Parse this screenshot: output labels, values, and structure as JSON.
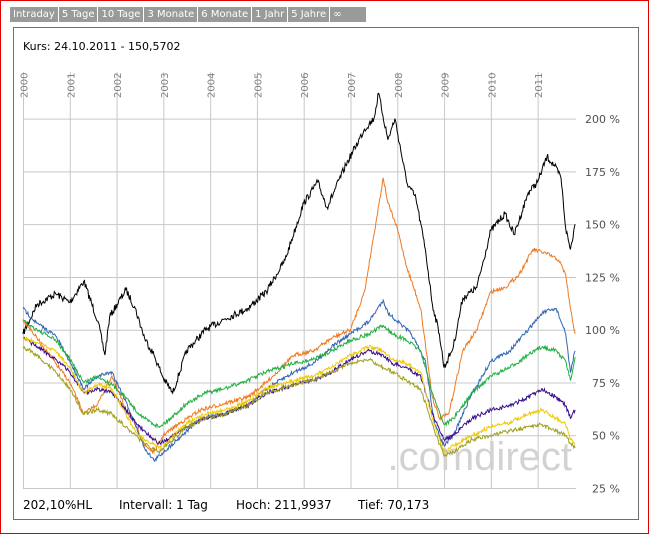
{
  "tabs": [
    "Intraday",
    "5 Tage",
    "10 Tage",
    "3 Monate",
    "6 Monate",
    "1 Jahr",
    "5 Jahre",
    "∞"
  ],
  "header": {
    "kurs": "Kurs: 24.10.2011 - 150,5702"
  },
  "watermark": ".comdirect",
  "footer": {
    "range": "202,10%HL",
    "interval": "Intervall: 1 Tag",
    "high": "Hoch: 211,9937",
    "low": "Tief:  70,173"
  },
  "colors": {
    "frame": "#e00000",
    "tab_bg": "#9a9a9a",
    "grid": "#c8c8c8"
  },
  "chart_data": {
    "type": "line",
    "x_ticks": [
      "2000",
      "2001",
      "2002",
      "2003",
      "2004",
      "2005",
      "2006",
      "2007",
      "2008",
      "2009",
      "2010",
      "2011"
    ],
    "y_ticks": [
      "25 %",
      "50 %",
      "75 %",
      "100 %",
      "125 %",
      "150 %",
      "175 %",
      "200 %"
    ],
    "ylim": [
      25,
      215
    ],
    "xlim": [
      2000.0,
      2011.82
    ],
    "grid": true,
    "series": [
      {
        "color": "#000000",
        "points": [
          [
            2000.0,
            98
          ],
          [
            2000.3,
            112
          ],
          [
            2000.7,
            117
          ],
          [
            2001.0,
            113
          ],
          [
            2001.3,
            123
          ],
          [
            2001.6,
            104
          ],
          [
            2001.75,
            88
          ],
          [
            2001.85,
            106
          ],
          [
            2002.2,
            119
          ],
          [
            2002.4,
            110
          ],
          [
            2002.6,
            96
          ],
          [
            2002.8,
            88
          ],
          [
            2003.0,
            77
          ],
          [
            2003.2,
            70
          ],
          [
            2003.5,
            90
          ],
          [
            2003.9,
            100
          ],
          [
            2004.3,
            105
          ],
          [
            2004.8,
            110
          ],
          [
            2005.2,
            118
          ],
          [
            2005.6,
            133
          ],
          [
            2006.0,
            160
          ],
          [
            2006.3,
            170
          ],
          [
            2006.5,
            158
          ],
          [
            2006.9,
            178
          ],
          [
            2007.3,
            195
          ],
          [
            2007.5,
            200
          ],
          [
            2007.6,
            212
          ],
          [
            2007.8,
            190
          ],
          [
            2007.95,
            200
          ],
          [
            2008.2,
            170
          ],
          [
            2008.4,
            162
          ],
          [
            2008.6,
            138
          ],
          [
            2008.75,
            112
          ],
          [
            2008.9,
            98
          ],
          [
            2009.0,
            82
          ],
          [
            2009.2,
            92
          ],
          [
            2009.4,
            115
          ],
          [
            2009.7,
            120
          ],
          [
            2010.0,
            147
          ],
          [
            2010.3,
            155
          ],
          [
            2010.5,
            145
          ],
          [
            2010.8,
            165
          ],
          [
            2011.0,
            170
          ],
          [
            2011.2,
            182
          ],
          [
            2011.35,
            178
          ],
          [
            2011.5,
            172
          ],
          [
            2011.6,
            148
          ],
          [
            2011.7,
            138
          ],
          [
            2011.8,
            150
          ]
        ]
      },
      {
        "color": "#f07820",
        "points": [
          [
            2000.0,
            105
          ],
          [
            2000.3,
            96
          ],
          [
            2000.7,
            84
          ],
          [
            2001.0,
            75
          ],
          [
            2001.3,
            60
          ],
          [
            2001.6,
            65
          ],
          [
            2001.9,
            78
          ],
          [
            2002.2,
            62
          ],
          [
            2002.4,
            55
          ],
          [
            2002.6,
            45
          ],
          [
            2002.8,
            42
          ],
          [
            2003.0,
            50
          ],
          [
            2003.3,
            55
          ],
          [
            2003.8,
            62
          ],
          [
            2004.3,
            65
          ],
          [
            2004.8,
            68
          ],
          [
            2005.2,
            75
          ],
          [
            2005.8,
            88
          ],
          [
            2006.2,
            90
          ],
          [
            2006.6,
            96
          ],
          [
            2007.0,
            100
          ],
          [
            2007.3,
            118
          ],
          [
            2007.5,
            145
          ],
          [
            2007.7,
            172
          ],
          [
            2007.8,
            160
          ],
          [
            2008.0,
            148
          ],
          [
            2008.2,
            130
          ],
          [
            2008.5,
            110
          ],
          [
            2008.75,
            68
          ],
          [
            2008.9,
            58
          ],
          [
            2009.1,
            60
          ],
          [
            2009.4,
            90
          ],
          [
            2009.7,
            100
          ],
          [
            2010.0,
            118
          ],
          [
            2010.3,
            120
          ],
          [
            2010.6,
            126
          ],
          [
            2010.9,
            138
          ],
          [
            2011.2,
            136
          ],
          [
            2011.45,
            133
          ],
          [
            2011.6,
            126
          ],
          [
            2011.7,
            110
          ],
          [
            2011.8,
            98
          ]
        ]
      },
      {
        "color": "#3264b4",
        "points": [
          [
            2000.0,
            110
          ],
          [
            2000.3,
            103
          ],
          [
            2000.7,
            97
          ],
          [
            2001.0,
            85
          ],
          [
            2001.3,
            72
          ],
          [
            2001.6,
            78
          ],
          [
            2001.9,
            80
          ],
          [
            2002.2,
            66
          ],
          [
            2002.4,
            55
          ],
          [
            2002.6,
            44
          ],
          [
            2002.8,
            38
          ],
          [
            2003.0,
            42
          ],
          [
            2003.3,
            48
          ],
          [
            2003.8,
            58
          ],
          [
            2004.3,
            60
          ],
          [
            2004.8,
            64
          ],
          [
            2005.2,
            72
          ],
          [
            2005.8,
            80
          ],
          [
            2006.2,
            84
          ],
          [
            2006.6,
            92
          ],
          [
            2007.0,
            98
          ],
          [
            2007.4,
            104
          ],
          [
            2007.7,
            114
          ],
          [
            2007.8,
            108
          ],
          [
            2008.0,
            104
          ],
          [
            2008.3,
            98
          ],
          [
            2008.6,
            85
          ],
          [
            2008.8,
            55
          ],
          [
            2009.0,
            45
          ],
          [
            2009.2,
            50
          ],
          [
            2009.6,
            70
          ],
          [
            2010.0,
            85
          ],
          [
            2010.4,
            90
          ],
          [
            2010.8,
            100
          ],
          [
            2011.1,
            108
          ],
          [
            2011.4,
            110
          ],
          [
            2011.6,
            98
          ],
          [
            2011.7,
            80
          ],
          [
            2011.8,
            90
          ]
        ]
      },
      {
        "color": "#20b040",
        "points": [
          [
            2000.0,
            104
          ],
          [
            2000.3,
            100
          ],
          [
            2000.7,
            95
          ],
          [
            2001.0,
            86
          ],
          [
            2001.3,
            75
          ],
          [
            2001.6,
            78
          ],
          [
            2001.9,
            74
          ],
          [
            2002.2,
            68
          ],
          [
            2002.4,
            62
          ],
          [
            2002.6,
            58
          ],
          [
            2002.9,
            54
          ],
          [
            2003.1,
            57
          ],
          [
            2003.5,
            65
          ],
          [
            2003.9,
            70
          ],
          [
            2004.3,
            72
          ],
          [
            2004.8,
            76
          ],
          [
            2005.2,
            80
          ],
          [
            2005.8,
            84
          ],
          [
            2006.2,
            86
          ],
          [
            2006.6,
            90
          ],
          [
            2007.0,
            95
          ],
          [
            2007.4,
            98
          ],
          [
            2007.7,
            102
          ],
          [
            2007.9,
            98
          ],
          [
            2008.2,
            95
          ],
          [
            2008.5,
            90
          ],
          [
            2008.75,
            70
          ],
          [
            2009.0,
            55
          ],
          [
            2009.2,
            58
          ],
          [
            2009.6,
            70
          ],
          [
            2010.0,
            78
          ],
          [
            2010.4,
            82
          ],
          [
            2010.8,
            88
          ],
          [
            2011.1,
            92
          ],
          [
            2011.4,
            90
          ],
          [
            2011.6,
            85
          ],
          [
            2011.7,
            76
          ],
          [
            2011.8,
            87
          ]
        ]
      },
      {
        "color": "#3a108a",
        "points": [
          [
            2000.0,
            96
          ],
          [
            2000.3,
            92
          ],
          [
            2000.7,
            86
          ],
          [
            2001.0,
            80
          ],
          [
            2001.3,
            70
          ],
          [
            2001.6,
            72
          ],
          [
            2001.9,
            70
          ],
          [
            2002.2,
            62
          ],
          [
            2002.4,
            56
          ],
          [
            2002.6,
            52
          ],
          [
            2002.9,
            46
          ],
          [
            2003.1,
            48
          ],
          [
            2003.5,
            54
          ],
          [
            2003.9,
            58
          ],
          [
            2004.3,
            60
          ],
          [
            2004.8,
            64
          ],
          [
            2005.2,
            70
          ],
          [
            2005.8,
            74
          ],
          [
            2006.2,
            76
          ],
          [
            2006.6,
            80
          ],
          [
            2007.0,
            86
          ],
          [
            2007.4,
            90
          ],
          [
            2007.7,
            88
          ],
          [
            2007.9,
            84
          ],
          [
            2008.2,
            82
          ],
          [
            2008.5,
            78
          ],
          [
            2008.75,
            60
          ],
          [
            2009.0,
            48
          ],
          [
            2009.2,
            50
          ],
          [
            2009.6,
            58
          ],
          [
            2010.0,
            62
          ],
          [
            2010.4,
            64
          ],
          [
            2010.8,
            68
          ],
          [
            2011.1,
            72
          ],
          [
            2011.4,
            68
          ],
          [
            2011.6,
            64
          ],
          [
            2011.7,
            58
          ],
          [
            2011.8,
            62
          ]
        ]
      },
      {
        "color": "#f0c800",
        "points": [
          [
            2000.0,
            96
          ],
          [
            2000.3,
            94
          ],
          [
            2000.7,
            90
          ],
          [
            2001.0,
            82
          ],
          [
            2001.3,
            70
          ],
          [
            2001.6,
            74
          ],
          [
            2001.9,
            72
          ],
          [
            2002.2,
            60
          ],
          [
            2002.4,
            52
          ],
          [
            2002.6,
            48
          ],
          [
            2002.9,
            44
          ],
          [
            2003.1,
            47
          ],
          [
            2003.5,
            56
          ],
          [
            2003.9,
            60
          ],
          [
            2004.3,
            62
          ],
          [
            2004.8,
            66
          ],
          [
            2005.2,
            72
          ],
          [
            2005.8,
            76
          ],
          [
            2006.2,
            78
          ],
          [
            2006.6,
            82
          ],
          [
            2007.0,
            88
          ],
          [
            2007.4,
            92
          ],
          [
            2007.7,
            90
          ],
          [
            2007.9,
            86
          ],
          [
            2008.2,
            84
          ],
          [
            2008.5,
            80
          ],
          [
            2008.75,
            58
          ],
          [
            2009.0,
            42
          ],
          [
            2009.2,
            45
          ],
          [
            2009.6,
            50
          ],
          [
            2010.0,
            54
          ],
          [
            2010.4,
            56
          ],
          [
            2010.8,
            60
          ],
          [
            2011.1,
            62
          ],
          [
            2011.4,
            58
          ],
          [
            2011.6,
            55
          ],
          [
            2011.7,
            48
          ],
          [
            2011.8,
            46
          ]
        ]
      },
      {
        "color": "#a0a020",
        "points": [
          [
            2000.0,
            92
          ],
          [
            2000.3,
            88
          ],
          [
            2000.7,
            80
          ],
          [
            2001.0,
            72
          ],
          [
            2001.3,
            60
          ],
          [
            2001.6,
            62
          ],
          [
            2001.9,
            60
          ],
          [
            2002.2,
            54
          ],
          [
            2002.4,
            50
          ],
          [
            2002.6,
            46
          ],
          [
            2002.9,
            42
          ],
          [
            2003.1,
            46
          ],
          [
            2003.5,
            54
          ],
          [
            2003.9,
            58
          ],
          [
            2004.3,
            60
          ],
          [
            2004.8,
            64
          ],
          [
            2005.2,
            70
          ],
          [
            2005.8,
            74
          ],
          [
            2006.2,
            76
          ],
          [
            2006.6,
            80
          ],
          [
            2007.0,
            84
          ],
          [
            2007.4,
            86
          ],
          [
            2007.7,
            82
          ],
          [
            2007.9,
            80
          ],
          [
            2008.2,
            76
          ],
          [
            2008.5,
            72
          ],
          [
            2008.75,
            55
          ],
          [
            2009.0,
            40
          ],
          [
            2009.2,
            42
          ],
          [
            2009.6,
            48
          ],
          [
            2010.0,
            50
          ],
          [
            2010.4,
            52
          ],
          [
            2010.8,
            54
          ],
          [
            2011.1,
            55
          ],
          [
            2011.4,
            52
          ],
          [
            2011.6,
            50
          ],
          [
            2011.7,
            46
          ],
          [
            2011.8,
            44
          ]
        ]
      }
    ]
  }
}
